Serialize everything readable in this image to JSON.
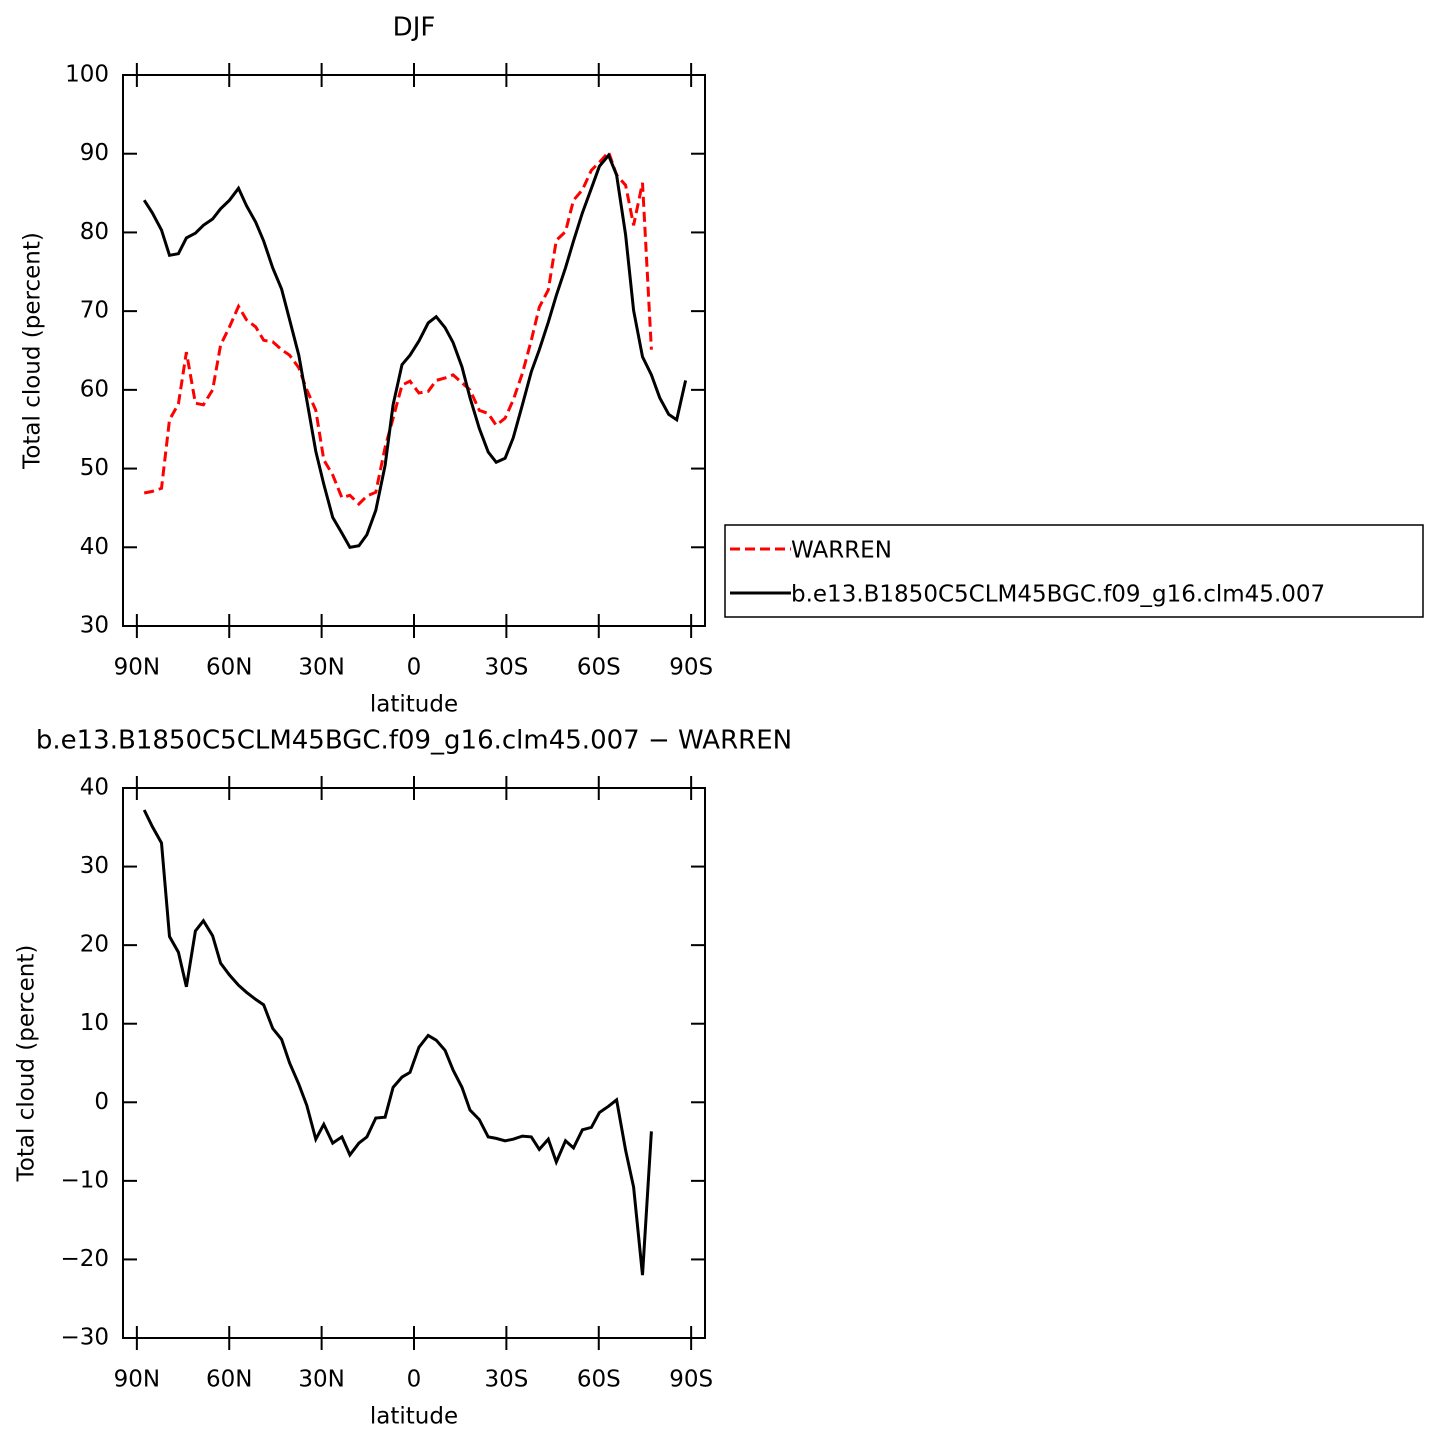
{
  "chart_data": [
    {
      "type": "line",
      "title": "DJF",
      "xlabel": "latitude",
      "ylabel": "Total cloud (percent)",
      "x": [
        87.6,
        85,
        82,
        79.4,
        76.5,
        73.9,
        71,
        68.4,
        65.4,
        62.8,
        59.9,
        57,
        54.4,
        51.4,
        48.8,
        45.9,
        43,
        40.4,
        37.4,
        34.8,
        31.9,
        29.3,
        26.4,
        23.4,
        20.8,
        17.9,
        15.3,
        12.4,
        9.4,
        6.8,
        3.9,
        1.3,
        -1.6,
        -4.6,
        -7.2,
        -10.1,
        -12.7,
        -15.6,
        -18.2,
        -21.2,
        -24.1,
        -26.7,
        -29.6,
        -32.2,
        -35.2,
        -38.1,
        -40.7,
        -43.6,
        -46.2,
        -49.2,
        -51.8,
        -54.7,
        -57.6,
        -60.2,
        -63.2,
        -65.8,
        -68.7,
        -71.3,
        -74.2,
        -77.1,
        -79.8,
        -82.7,
        -85.3,
        -88.2
      ],
      "series": [
        {
          "name": "WARREN",
          "color": "#ff0000",
          "dashed": true,
          "values": [
            46.9,
            47.1,
            47.5,
            56.2,
            58.2,
            64.8,
            58.3,
            58.1,
            60,
            65.7,
            68,
            70.6,
            68.9,
            68,
            66.3,
            66.1,
            65.1,
            64.4,
            62.8,
            60,
            57.4,
            51.1,
            49.2,
            46.3,
            46.6,
            45.5,
            46.5,
            47,
            52.7,
            56.4,
            60.6,
            61.1,
            59.6,
            59.8,
            61.2,
            61.5,
            61.9,
            60.9,
            60,
            57.4,
            57,
            55.5,
            56.4,
            58.7,
            62.1,
            66.3,
            70.5,
            72.7,
            79,
            80.1,
            84.1,
            85.4,
            87.9,
            88.9,
            90.2,
            87.3,
            86,
            80.9,
            86.3,
            65.1,
            null,
            null,
            null,
            null
          ]
        },
        {
          "name": "b.e13.B1850C5CLM45BGC.f09_g16.clm45.007",
          "color": "#000000",
          "dashed": false,
          "values": [
            84.1,
            82.5,
            80.3,
            77.1,
            77.3,
            79.3,
            79.9,
            80.9,
            81.7,
            83,
            84.1,
            85.6,
            83.4,
            81.3,
            78.9,
            75.5,
            72.8,
            68.9,
            64.4,
            58.7,
            52.2,
            48,
            43.8,
            41.8,
            40,
            40.2,
            41.6,
            44.7,
            50.4,
            58.1,
            63.2,
            64.4,
            66.2,
            68.5,
            69.3,
            67.9,
            66,
            62.9,
            59,
            55.1,
            52.1,
            50.8,
            51.3,
            53.9,
            58.1,
            62.3,
            65.1,
            68.6,
            72,
            75.5,
            78.9,
            82.5,
            85.6,
            88.4,
            89.8,
            87.3,
            79.7,
            70.1,
            64.2,
            61.9,
            59,
            56.9,
            56.2,
            61.2
          ]
        }
      ],
      "xlim": [
        94.5,
        -94.5
      ],
      "xticks": [
        {
          "value": 90,
          "label": "90N"
        },
        {
          "value": 60,
          "label": "60N"
        },
        {
          "value": 30,
          "label": "30N"
        },
        0,
        {
          "value": -30,
          "label": "30S"
        },
        {
          "value": -60,
          "label": "60S"
        },
        {
          "value": -90,
          "label": "90S"
        }
      ],
      "ylim": [
        30,
        100
      ],
      "yticks": [
        30,
        40,
        50,
        60,
        70,
        80,
        90,
        100
      ],
      "legend": "right"
    },
    {
      "type": "line",
      "title": "b.e13.B1850C5CLM45BGC.f09_g16.clm45.007 − WARREN",
      "xlabel": "latitude",
      "ylabel": "Total cloud (percent)",
      "x": [
        87.6,
        85,
        82,
        79.4,
        76.5,
        73.9,
        71,
        68.4,
        65.4,
        62.8,
        59.9,
        57,
        54.4,
        51.4,
        48.8,
        45.9,
        43,
        40.4,
        37.4,
        34.8,
        31.9,
        29.3,
        26.4,
        23.4,
        20.8,
        17.9,
        15.3,
        12.4,
        9.4,
        6.8,
        3.9,
        1.3,
        -1.6,
        -4.6,
        -7.2,
        -10.1,
        -12.7,
        -15.6,
        -18.2,
        -21.2,
        -24.1,
        -26.7,
        -29.6,
        -32.2,
        -35.2,
        -38.1,
        -40.7,
        -43.6,
        -46.2,
        -49.2,
        -51.8,
        -54.7,
        -57.6,
        -60.2,
        -63.2,
        -65.8,
        -68.7,
        -71.3,
        -74.2,
        -77.1,
        -79.8,
        -82.7,
        -85.3,
        -88.2
      ],
      "series": [
        {
          "color": "#000000",
          "dashed": false,
          "values": [
            37.2,
            35.1,
            33,
            21.1,
            19.1,
            14.7,
            21.8,
            23.1,
            21.2,
            17.7,
            16.2,
            14.9,
            14,
            13.1,
            12.4,
            9.4,
            8,
            5,
            2.3,
            -0.4,
            -4.7,
            -2.8,
            -5.2,
            -4.4,
            -6.7,
            -5.2,
            -4.4,
            -2,
            -1.9,
            1.9,
            3.2,
            3.8,
            7,
            8.5,
            7.9,
            6.6,
            4.1,
            1.9,
            -1,
            -2.2,
            -4.4,
            -4.6,
            -4.9,
            -4.7,
            -4.3,
            -4.4,
            -6,
            -4.7,
            -7.6,
            -4.9,
            -5.8,
            -3.5,
            -3.2,
            -1.3,
            -0.5,
            0.3,
            -6.1,
            -10.8,
            -22,
            -3.7,
            null,
            null,
            null,
            null
          ]
        }
      ],
      "xlim": [
        94.5,
        -94.5
      ],
      "xticks": [
        {
          "value": 90,
          "label": "90N"
        },
        {
          "value": 60,
          "label": "60N"
        },
        {
          "value": 30,
          "label": "30N"
        },
        0,
        {
          "value": -30,
          "label": "30S"
        },
        {
          "value": -60,
          "label": "60S"
        },
        {
          "value": -90,
          "label": "90S"
        }
      ],
      "ylim": [
        -30,
        40
      ],
      "yticks": [
        {
          "value": -30,
          "label": "−30"
        },
        {
          "value": -20,
          "label": "−20"
        },
        {
          "value": -10,
          "label": "−10"
        },
        0,
        10,
        20,
        30,
        40
      ]
    }
  ]
}
